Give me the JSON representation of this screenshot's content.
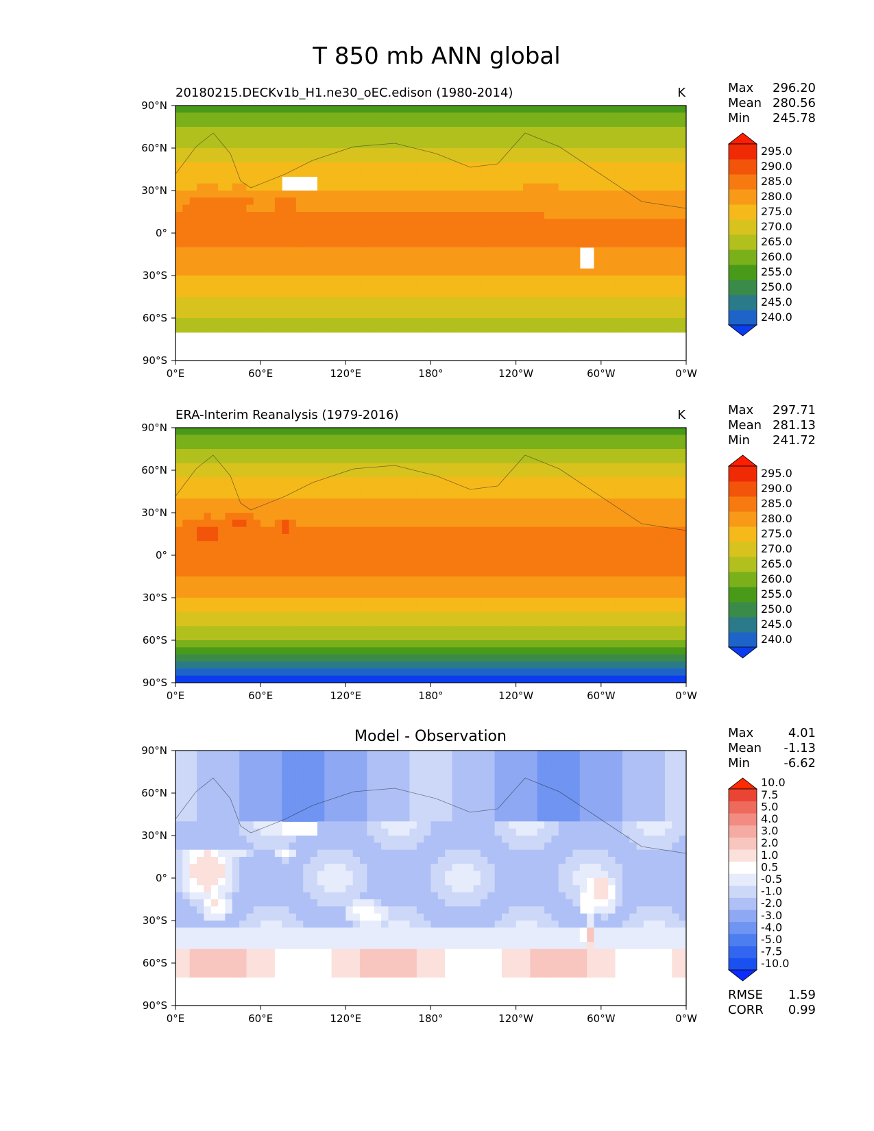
{
  "figure": {
    "title": "T 850 mb ANN global"
  },
  "axes": {
    "lat_ticks": [
      "90°N",
      "60°N",
      "30°N",
      "0°",
      "30°S",
      "60°S",
      "90°S"
    ],
    "lon_ticks": [
      "0°E",
      "60°E",
      "120°E",
      "180°",
      "120°W",
      "60°W",
      "0°W"
    ]
  },
  "chart_data": [
    {
      "type": "heatmap",
      "id": "model",
      "title": "20180215.DECKv1b_H1.ne30_oEC.edison (1980-2014)",
      "units": "K",
      "stats": [
        {
          "label": "Max",
          "value": "296.20"
        },
        {
          "label": "Mean",
          "value": "280.56"
        },
        {
          "label": "Min",
          "value": "245.78"
        }
      ],
      "field": {
        "equator": 285.5,
        "pole_north": 257,
        "pole_south": 255,
        "ocean_warm": 2.0,
        "land_warm": 6.0,
        "antarctic_mask": true,
        "himalaya_mask": true
      },
      "colorbar": {
        "levels": [
          240,
          245,
          250,
          255,
          260,
          265,
          270,
          275,
          280,
          285,
          290,
          295
        ],
        "labels": [
          "240.0",
          "245.0",
          "250.0",
          "255.0",
          "260.0",
          "265.0",
          "270.0",
          "275.0",
          "280.0",
          "285.0",
          "290.0",
          "295.0"
        ],
        "colors": [
          "#0a3cf0",
          "#1e64c8",
          "#2a7a8a",
          "#3a8a4a",
          "#4a9a1a",
          "#7ab01a",
          "#b2c01e",
          "#d8c21e",
          "#f5b91a",
          "#f89a18",
          "#f77a10",
          "#f2540a",
          "#f02a05",
          "#ff1e00"
        ]
      }
    },
    {
      "type": "heatmap",
      "id": "obs",
      "title": "ERA-Interim Reanalysis (1979-2016)",
      "units": "K",
      "stats": [
        {
          "label": "Max",
          "value": "297.71"
        },
        {
          "label": "Mean",
          "value": "281.13"
        },
        {
          "label": "Min",
          "value": "241.72"
        }
      ],
      "field": {
        "equator": 287.5,
        "pole_north": 258,
        "pole_south": 244,
        "ocean_warm": 2.5,
        "land_warm": 6.5,
        "antarctic_mask": false,
        "himalaya_mask": false
      },
      "colorbar": {
        "levels": [
          240,
          245,
          250,
          255,
          260,
          265,
          270,
          275,
          280,
          285,
          290,
          295
        ],
        "labels": [
          "240.0",
          "245.0",
          "250.0",
          "255.0",
          "260.0",
          "265.0",
          "270.0",
          "275.0",
          "280.0",
          "285.0",
          "290.0",
          "295.0"
        ],
        "colors": [
          "#0a3cf0",
          "#1e64c8",
          "#2a7a8a",
          "#3a8a4a",
          "#4a9a1a",
          "#7ab01a",
          "#b2c01e",
          "#d8c21e",
          "#f5b91a",
          "#f89a18",
          "#f77a10",
          "#f2540a",
          "#f02a05",
          "#ff1e00"
        ]
      }
    },
    {
      "type": "heatmap",
      "id": "diff",
      "title": "Model - Observation",
      "units": "",
      "stats": [
        {
          "label": "Max",
          "value": "4.01"
        },
        {
          "label": "Mean",
          "value": "-1.13"
        },
        {
          "label": "Min",
          "value": "-6.62"
        }
      ],
      "extra_stats": [
        {
          "label": "RMSE",
          "value": "1.59"
        },
        {
          "label": "CORR",
          "value": "0.99"
        }
      ],
      "field": {
        "mode": "diff",
        "antarctic_mask": true,
        "himalaya_mask": true
      },
      "colorbar": {
        "levels": [
          -10,
          -7.5,
          -5,
          -4,
          -3,
          -2,
          -1,
          -0.5,
          0.5,
          1,
          2,
          3,
          4,
          5,
          7.5,
          10
        ],
        "labels": [
          "-10.0",
          "-7.5",
          "-5.0",
          "-4.0",
          "-3.0",
          "-2.0",
          "-1.0",
          "-0.5",
          "0.5",
          "1.0",
          "2.0",
          "3.0",
          "4.0",
          "5.0",
          "7.5",
          "10.0"
        ],
        "colors": [
          "#0a2cff",
          "#1a50f0",
          "#3366f0",
          "#4d7ef0",
          "#6f94f2",
          "#8ea8f4",
          "#aec0f6",
          "#cdd8f8",
          "#e6ecfb",
          "#ffffff",
          "#fbe0dc",
          "#f8c6bf",
          "#f5aaa2",
          "#f28c82",
          "#ee6a5c",
          "#ea4434",
          "#ff2a00"
        ]
      }
    }
  ]
}
